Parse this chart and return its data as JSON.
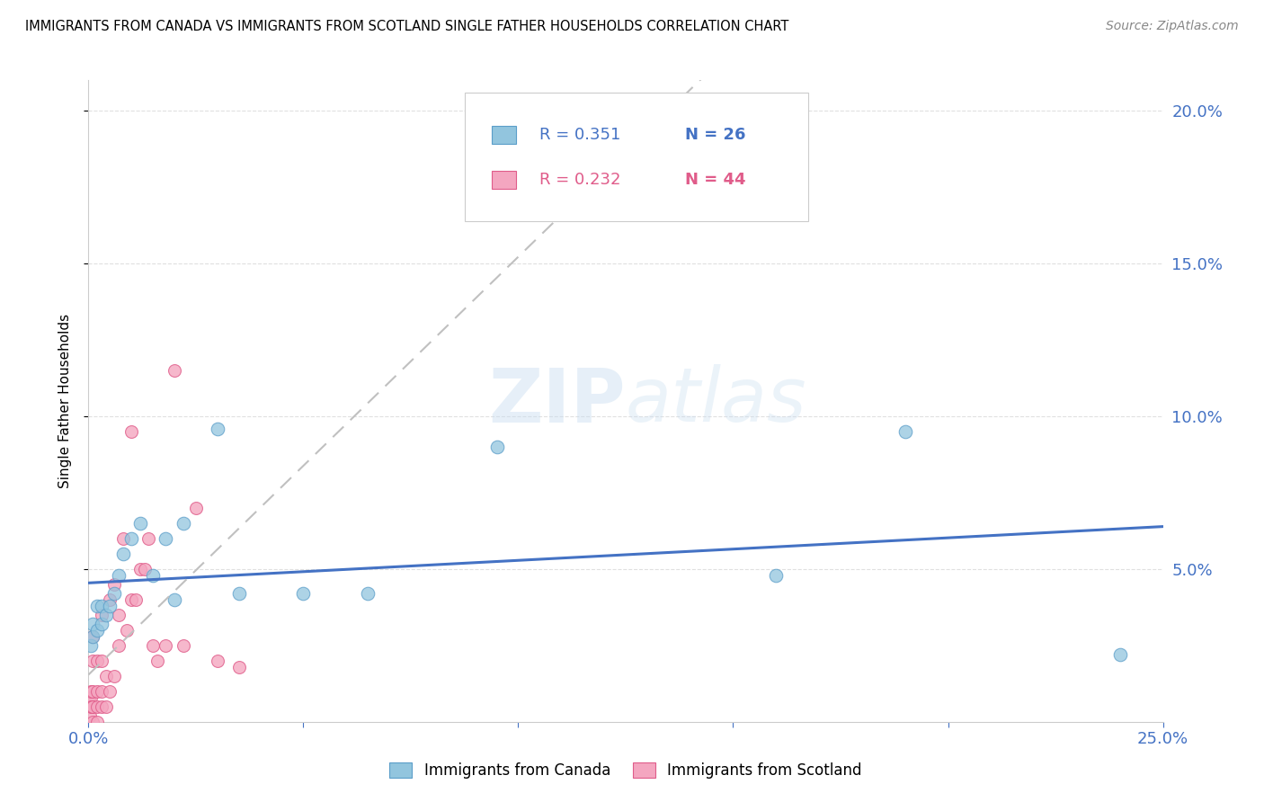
{
  "title": "IMMIGRANTS FROM CANADA VS IMMIGRANTS FROM SCOTLAND SINGLE FATHER HOUSEHOLDS CORRELATION CHART",
  "source": "Source: ZipAtlas.com",
  "ylabel": "Single Father Households",
  "canada_color": "#92c5de",
  "scotland_color": "#f4a6c0",
  "canada_edge_color": "#5b9ec9",
  "scotland_edge_color": "#e05c8a",
  "trend_canada_color": "#4472c4",
  "trend_scotland_color": "#c0c0c0",
  "watermark_zip": "ZIP",
  "watermark_atlas": "atlas",
  "legend_r_canada": "R = 0.351",
  "legend_n_canada": "N = 26",
  "legend_r_scotland": "R = 0.232",
  "legend_n_scotland": "N = 44",
  "legend_color_canada": "#4472c4",
  "legend_color_scotland": "#e05c8a",
  "canada_x": [
    0.0005,
    0.001,
    0.001,
    0.002,
    0.002,
    0.003,
    0.003,
    0.004,
    0.005,
    0.006,
    0.007,
    0.008,
    0.01,
    0.012,
    0.015,
    0.018,
    0.02,
    0.022,
    0.03,
    0.035,
    0.05,
    0.065,
    0.095,
    0.16,
    0.19,
    0.24
  ],
  "canada_y": [
    0.025,
    0.028,
    0.032,
    0.03,
    0.038,
    0.032,
    0.038,
    0.035,
    0.038,
    0.042,
    0.048,
    0.055,
    0.06,
    0.065,
    0.048,
    0.06,
    0.04,
    0.065,
    0.096,
    0.042,
    0.042,
    0.042,
    0.09,
    0.048,
    0.095,
    0.022
  ],
  "scotland_x": [
    0.0002,
    0.0003,
    0.0004,
    0.0005,
    0.0006,
    0.0007,
    0.0008,
    0.001,
    0.001,
    0.001,
    0.001,
    0.001,
    0.002,
    0.002,
    0.002,
    0.002,
    0.003,
    0.003,
    0.003,
    0.003,
    0.004,
    0.004,
    0.005,
    0.005,
    0.006,
    0.006,
    0.007,
    0.007,
    0.008,
    0.009,
    0.01,
    0.01,
    0.011,
    0.012,
    0.013,
    0.014,
    0.015,
    0.016,
    0.018,
    0.02,
    0.022,
    0.025,
    0.03,
    0.035
  ],
  "scotland_y": [
    0.008,
    0.005,
    0.002,
    0.008,
    0.01,
    0.005,
    0.005,
    0.0,
    0.005,
    0.01,
    0.02,
    0.028,
    0.0,
    0.005,
    0.01,
    0.02,
    0.005,
    0.01,
    0.02,
    0.035,
    0.005,
    0.015,
    0.01,
    0.04,
    0.015,
    0.045,
    0.025,
    0.035,
    0.06,
    0.03,
    0.04,
    0.095,
    0.04,
    0.05,
    0.05,
    0.06,
    0.025,
    0.02,
    0.025,
    0.115,
    0.025,
    0.07,
    0.02,
    0.018
  ],
  "xlim": [
    0.0,
    0.25
  ],
  "ylim": [
    0.0,
    0.21
  ],
  "xticks": [
    0.0,
    0.05,
    0.1,
    0.15,
    0.2,
    0.25
  ],
  "xticklabels": [
    "0.0%",
    "",
    "",
    "",
    "",
    "25.0%"
  ],
  "yticks_right": [
    0.05,
    0.1,
    0.15,
    0.2
  ],
  "yticklabels_right": [
    "5.0%",
    "10.0%",
    "15.0%",
    "20.0%"
  ],
  "tick_color": "#4472c4",
  "grid_color": "#e0e0e0"
}
